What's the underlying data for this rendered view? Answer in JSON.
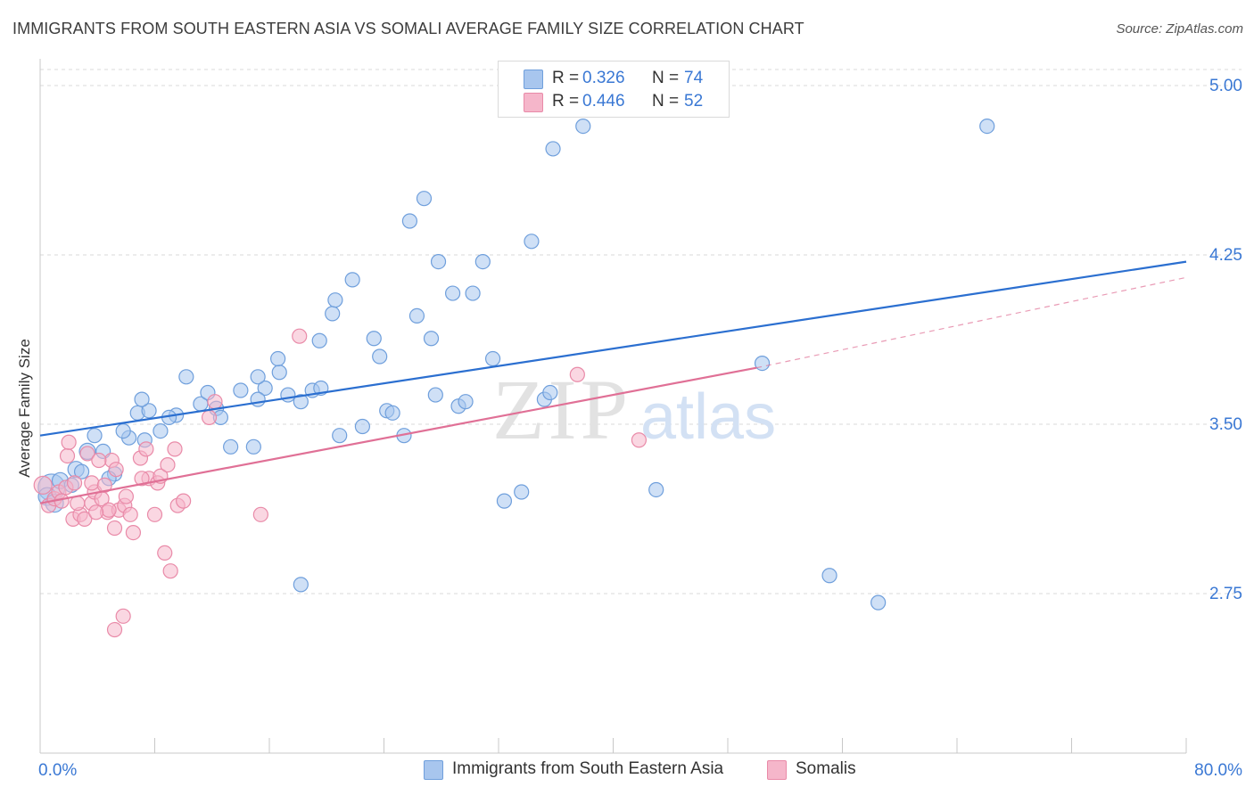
{
  "title": "IMMIGRANTS FROM SOUTH EASTERN ASIA VS SOMALI AVERAGE FAMILY SIZE CORRELATION CHART",
  "source": "Source: ZipAtlas.com",
  "watermark": {
    "zip": "ZIP",
    "atlas": "atlas"
  },
  "legend": {
    "r_label": "R =",
    "n_label": "N =",
    "series": [
      {
        "r": "0.326",
        "n": "74"
      },
      {
        "r": "0.446",
        "n": "52"
      }
    ]
  },
  "colors": {
    "blue_fill": "#a8c6ee",
    "blue_stroke": "#6f9fdc",
    "blue_line": "#2b6fd0",
    "blue_text": "#3a78d4",
    "pink_fill": "#f5b6ca",
    "pink_stroke": "#e98aa8",
    "pink_line": "#e07096",
    "pink_text": "#3a78d4",
    "grid": "#d8d8d8",
    "axis_text": "#3a78d4"
  },
  "chart_data": {
    "type": "scatter",
    "ylabel": "Average Family Size",
    "x_tick_labels": [
      "0.0%",
      "80.0%"
    ],
    "y_tick_labels": [
      "5.00",
      "4.25",
      "3.50",
      "2.75"
    ],
    "y_ticks": [
      5.0,
      4.25,
      3.5,
      2.75
    ],
    "xlim": [
      0,
      80
    ],
    "ylim": [
      2.0,
      5.12
    ],
    "grid": "horizontal-dashed",
    "legend_position": "top-center",
    "series": [
      {
        "name": "Immigrants from South Eastern Asia",
        "color": "blue",
        "trend": {
          "x": [
            0,
            80
          ],
          "y": [
            3.45,
            4.22
          ]
        },
        "points": [
          [
            0.8,
            3.22
          ],
          [
            0.5,
            3.18
          ],
          [
            1.0,
            3.15
          ],
          [
            1.4,
            3.25
          ],
          [
            2.5,
            3.3
          ],
          [
            3.3,
            3.38
          ],
          [
            4.4,
            3.38
          ],
          [
            3.8,
            3.45
          ],
          [
            2.9,
            3.29
          ],
          [
            5.2,
            3.28
          ],
          [
            6.2,
            3.44
          ],
          [
            6.8,
            3.55
          ],
          [
            5.8,
            3.47
          ],
          [
            7.3,
            3.43
          ],
          [
            7.6,
            3.56
          ],
          [
            8.4,
            3.47
          ],
          [
            9.5,
            3.54
          ],
          [
            9.0,
            3.53
          ],
          [
            10.2,
            3.71
          ],
          [
            11.2,
            3.59
          ],
          [
            11.7,
            3.64
          ],
          [
            12.3,
            3.57
          ],
          [
            12.6,
            3.53
          ],
          [
            13.3,
            3.4
          ],
          [
            14.0,
            3.65
          ],
          [
            14.9,
            3.4
          ],
          [
            15.7,
            3.66
          ],
          [
            15.2,
            3.71
          ],
          [
            16.7,
            3.73
          ],
          [
            17.3,
            3.63
          ],
          [
            16.6,
            3.79
          ],
          [
            18.2,
            3.6
          ],
          [
            19.0,
            3.65
          ],
          [
            19.6,
            3.66
          ],
          [
            19.5,
            3.87
          ],
          [
            20.4,
            3.99
          ],
          [
            20.6,
            4.05
          ],
          [
            21.8,
            4.14
          ],
          [
            22.5,
            3.49
          ],
          [
            23.3,
            3.88
          ],
          [
            23.7,
            3.8
          ],
          [
            24.2,
            3.56
          ],
          [
            24.6,
            3.55
          ],
          [
            25.4,
            3.45
          ],
          [
            25.8,
            4.4
          ],
          [
            26.3,
            3.98
          ],
          [
            26.8,
            4.5
          ],
          [
            27.3,
            3.88
          ],
          [
            27.8,
            4.22
          ],
          [
            28.8,
            4.08
          ],
          [
            29.2,
            3.58
          ],
          [
            29.7,
            3.6
          ],
          [
            30.2,
            4.08
          ],
          [
            30.9,
            4.22
          ],
          [
            31.6,
            3.79
          ],
          [
            32.4,
            3.16
          ],
          [
            33.6,
            3.2
          ],
          [
            34.3,
            4.31
          ],
          [
            35.2,
            3.61
          ],
          [
            35.6,
            3.64
          ],
          [
            35.8,
            4.72
          ],
          [
            37.9,
            4.82
          ],
          [
            43.0,
            3.21
          ],
          [
            50.4,
            3.77
          ],
          [
            55.1,
            2.83
          ],
          [
            58.5,
            2.71
          ],
          [
            66.1,
            4.82
          ],
          [
            15.2,
            3.61
          ],
          [
            4.8,
            3.26
          ],
          [
            2.2,
            3.23
          ],
          [
            18.2,
            2.79
          ],
          [
            7.1,
            3.61
          ],
          [
            20.9,
            3.45
          ],
          [
            27.6,
            3.63
          ]
        ],
        "sizes": [
          34,
          24,
          24,
          22,
          22,
          22,
          20,
          20,
          20,
          20,
          20,
          20,
          20,
          20,
          20,
          20,
          20,
          20,
          20,
          20,
          20,
          20,
          20,
          20,
          20,
          20,
          20,
          20,
          20,
          20,
          20,
          20,
          20,
          20,
          20,
          20,
          20,
          20,
          20,
          20,
          20,
          20,
          20,
          20,
          20,
          20,
          20,
          20,
          20,
          20,
          20,
          20,
          20,
          20,
          20,
          20,
          20,
          20,
          20,
          20,
          20,
          20,
          20,
          20,
          20,
          20,
          20,
          20,
          20,
          20,
          20,
          20,
          20,
          20
        ]
      },
      {
        "name": "Somalis",
        "color": "pink",
        "trend": {
          "x": [
            0,
            50
          ],
          "y": [
            3.15,
            3.75
          ]
        },
        "trend_dashed": {
          "x": [
            50,
            80
          ],
          "y": [
            3.75,
            4.15
          ]
        },
        "points": [
          [
            0.2,
            3.23
          ],
          [
            0.6,
            3.14
          ],
          [
            1.0,
            3.17
          ],
          [
            1.3,
            3.2
          ],
          [
            1.8,
            3.22
          ],
          [
            1.9,
            3.36
          ],
          [
            2.0,
            3.42
          ],
          [
            2.4,
            3.24
          ],
          [
            2.3,
            3.08
          ],
          [
            2.8,
            3.1
          ],
          [
            3.1,
            3.08
          ],
          [
            3.3,
            3.37
          ],
          [
            3.6,
            3.15
          ],
          [
            3.8,
            3.2
          ],
          [
            3.6,
            3.24
          ],
          [
            4.3,
            3.17
          ],
          [
            4.5,
            3.23
          ],
          [
            4.7,
            3.11
          ],
          [
            5.0,
            3.34
          ],
          [
            5.3,
            3.3
          ],
          [
            5.2,
            3.04
          ],
          [
            5.5,
            3.12
          ],
          [
            5.9,
            3.14
          ],
          [
            6.3,
            3.1
          ],
          [
            6.5,
            3.02
          ],
          [
            7.0,
            3.35
          ],
          [
            7.4,
            3.39
          ],
          [
            7.6,
            3.26
          ],
          [
            8.0,
            3.1
          ],
          [
            8.2,
            3.24
          ],
          [
            8.4,
            3.27
          ],
          [
            8.7,
            2.93
          ],
          [
            8.9,
            3.32
          ],
          [
            9.1,
            2.85
          ],
          [
            9.4,
            3.39
          ],
          [
            9.6,
            3.14
          ],
          [
            10.0,
            3.16
          ],
          [
            11.8,
            3.53
          ],
          [
            12.2,
            3.6
          ],
          [
            15.4,
            3.1
          ],
          [
            18.1,
            3.89
          ],
          [
            37.5,
            3.72
          ],
          [
            41.8,
            3.43
          ],
          [
            5.8,
            2.65
          ],
          [
            5.2,
            2.59
          ],
          [
            4.8,
            3.12
          ],
          [
            2.6,
            3.15
          ],
          [
            1.5,
            3.16
          ],
          [
            7.1,
            3.26
          ],
          [
            6.0,
            3.18
          ],
          [
            3.9,
            3.11
          ],
          [
            4.1,
            3.34
          ]
        ],
        "sizes": [
          24,
          20,
          20,
          20,
          20,
          20,
          20,
          20,
          20,
          20,
          20,
          20,
          20,
          20,
          20,
          20,
          20,
          20,
          20,
          20,
          20,
          20,
          20,
          20,
          20,
          20,
          20,
          20,
          20,
          20,
          20,
          20,
          20,
          20,
          20,
          20,
          20,
          20,
          20,
          20,
          20,
          20,
          20,
          20,
          20,
          20,
          20,
          20,
          20,
          20,
          20,
          20
        ]
      }
    ]
  }
}
